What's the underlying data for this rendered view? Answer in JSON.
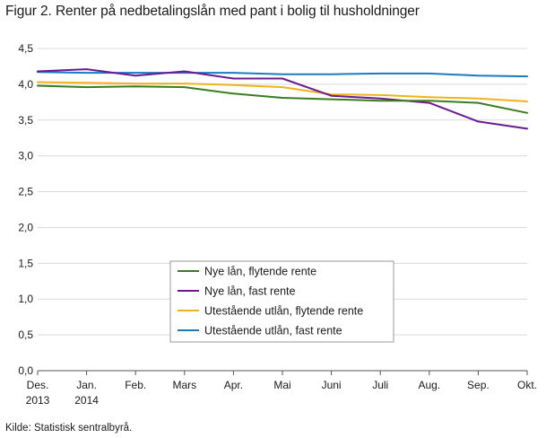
{
  "title": "Figur 2. Renter på nedbetalingslån med pant i bolig til husholdninger",
  "source": "Kilde: Statistisk sentralbyrå.",
  "colors": {
    "grid": "#d9d9d9",
    "axis": "#555555",
    "legend_border": "#999999"
  },
  "chart_data": {
    "type": "line",
    "x": [
      [
        "Des.",
        "2013"
      ],
      [
        "Jan.",
        "2014"
      ],
      [
        "Feb."
      ],
      [
        "Mars"
      ],
      [
        "Apr."
      ],
      [
        "Mai"
      ],
      [
        "Juni"
      ],
      [
        "Juli"
      ],
      [
        "Aug."
      ],
      [
        "Sep."
      ],
      [
        "Okt."
      ]
    ],
    "ylim": [
      0,
      4.5
    ],
    "yticks": [
      "0,0",
      "0,5",
      "1,0",
      "1,5",
      "2,0",
      "2,5",
      "3,0",
      "3,5",
      "4,0",
      "4,5"
    ],
    "grid": true,
    "legend_position": "center-bottom",
    "series": [
      {
        "name": "Nye lån, flytende rente",
        "color": "#3a7d1f",
        "values": [
          3.98,
          3.96,
          3.97,
          3.96,
          3.87,
          3.81,
          3.79,
          3.77,
          3.77,
          3.74,
          3.6
        ]
      },
      {
        "name": "Nye lån, fast rente",
        "color": "#6b1b8f",
        "values": [
          4.18,
          4.21,
          4.12,
          4.18,
          4.08,
          4.08,
          3.84,
          3.8,
          3.74,
          3.48,
          3.38
        ]
      },
      {
        "name": "Utestående utlån, flytende rente",
        "color": "#f0b21e",
        "values": [
          4.03,
          4.02,
          4.01,
          4.01,
          3.99,
          3.96,
          3.86,
          3.85,
          3.82,
          3.8,
          3.76
        ]
      },
      {
        "name": "Utestående utlån, fast rente",
        "color": "#1a7bbf",
        "values": [
          4.17,
          4.16,
          4.16,
          4.16,
          4.16,
          4.14,
          4.14,
          4.15,
          4.15,
          4.12,
          4.11
        ]
      }
    ]
  }
}
